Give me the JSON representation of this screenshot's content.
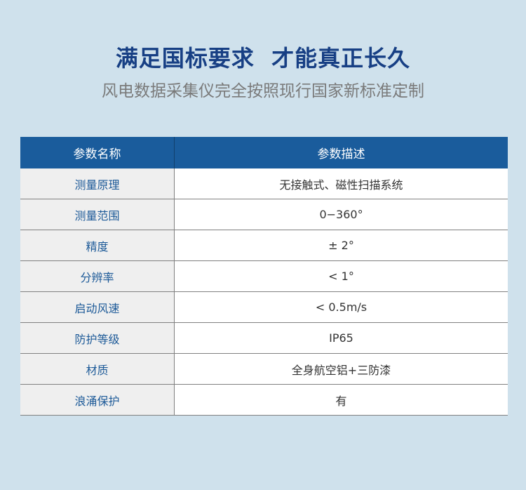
{
  "header": {
    "title": "满足国标要求  才能真正长久",
    "subtitle": "风电数据采集仪完全按照现行国家新标准定制"
  },
  "table": {
    "columns": [
      "参数名称",
      "参数描述"
    ],
    "rows": [
      {
        "name": "测量原理",
        "value": "无接触式、磁性扫描系统"
      },
      {
        "name": "测量范围",
        "value": "0−360°"
      },
      {
        "name": "精度",
        "value": "± 2°"
      },
      {
        "name": "分辨率",
        "value": "< 1°"
      },
      {
        "name": "启动风速",
        "value": "< 0.5m/s"
      },
      {
        "name": "防护等级",
        "value": "IP65"
      },
      {
        "name": "材质",
        "value": "全身航空铝+三防漆"
      },
      {
        "name": "浪涌保护",
        "value": "有"
      }
    ]
  },
  "colors": {
    "header_bg": "#1a5c9c",
    "title": "#173f84",
    "page_bg": "#cfe1ec"
  }
}
